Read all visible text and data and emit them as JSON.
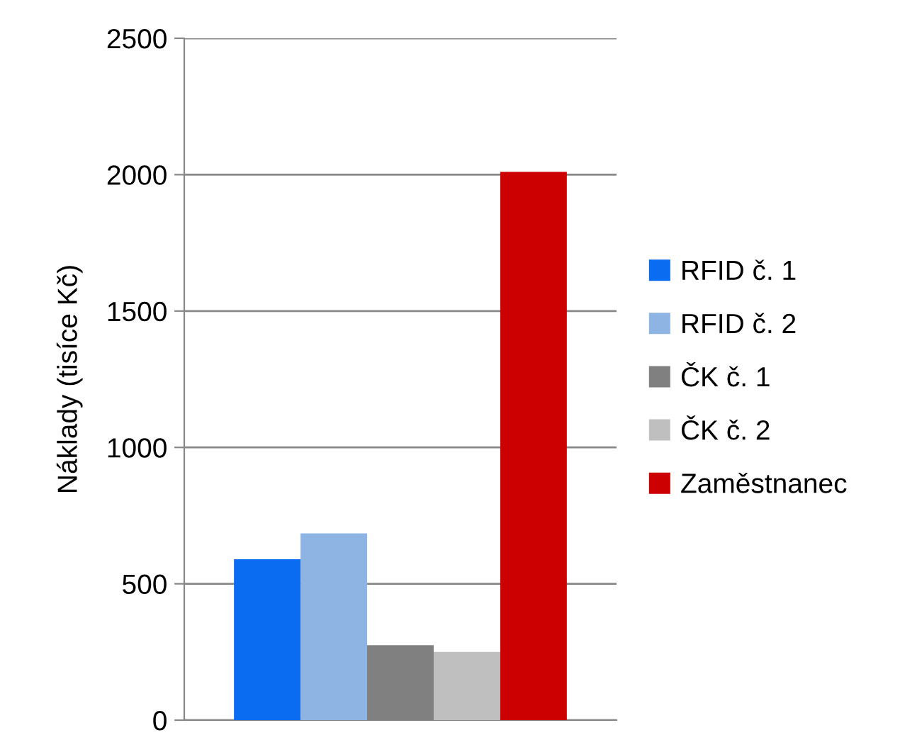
{
  "chart_data": {
    "type": "bar",
    "ylabel": "Náklady (tisíce Kč)",
    "categories": [
      null
    ],
    "series": [
      {
        "name": "RFID č. 1",
        "color": "#0a6cf0",
        "values": [
          590
        ]
      },
      {
        "name": "RFID č. 2",
        "color": "#8db4e2",
        "values": [
          685
        ]
      },
      {
        "name": "ČK č. 1",
        "color": "#808080",
        "values": [
          275
        ]
      },
      {
        "name": "ČK č. 2",
        "color": "#bfbfbf",
        "values": [
          250
        ]
      },
      {
        "name": "Zaměstnanec",
        "color": "#cc0000",
        "values": [
          2010
        ]
      }
    ],
    "ylim": [
      0,
      2500
    ],
    "yticks": [
      0,
      500,
      1000,
      1500,
      2000,
      2500
    ],
    "grid": "y",
    "legend": "right"
  }
}
